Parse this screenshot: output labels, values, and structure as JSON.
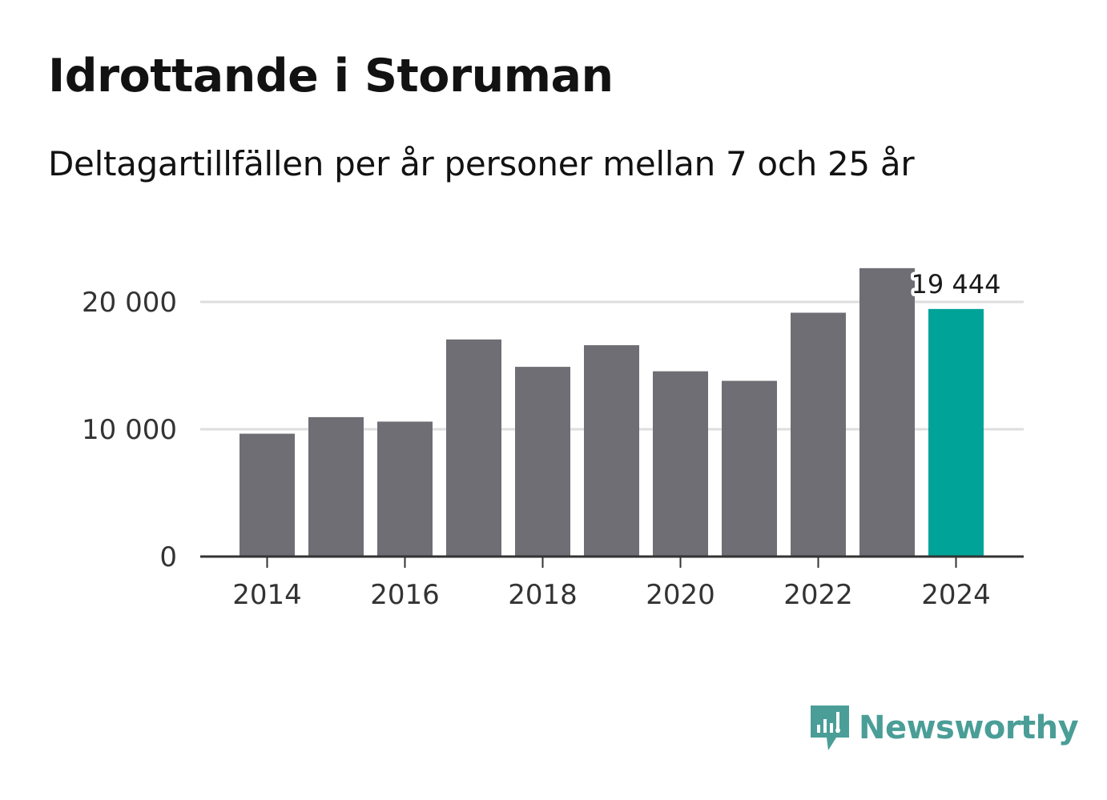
{
  "title": "Idrottande i Storuman",
  "subtitle": "Deltagartillfällen per år personer mellan 7 och 25 år",
  "brand": {
    "name": "Newsworthy",
    "color": "#4a9e97",
    "icon": "newsworthy-chart-bubble-icon"
  },
  "colors": {
    "bar": "#6f6e74",
    "highlight": "#00a398",
    "grid": "#dedede",
    "axis": "#333333"
  },
  "chart_data": {
    "type": "bar",
    "categories": [
      "2014",
      "2015",
      "2016",
      "2017",
      "2018",
      "2019",
      "2020",
      "2021",
      "2022",
      "2023",
      "2024"
    ],
    "values": [
      9650,
      10950,
      10600,
      17050,
      14900,
      16600,
      14550,
      13800,
      19150,
      22650,
      19444
    ],
    "highlight_index": 10,
    "data_label": "19 444",
    "x_tick_labels": [
      "2014",
      "2016",
      "2018",
      "2020",
      "2022",
      "2024"
    ],
    "y_ticks": [
      0,
      10000,
      20000
    ],
    "y_tick_labels": [
      "0",
      "10 000",
      "20 000"
    ],
    "ylim": [
      0,
      23000
    ],
    "grid": true,
    "xlabel": "",
    "ylabel": ""
  }
}
